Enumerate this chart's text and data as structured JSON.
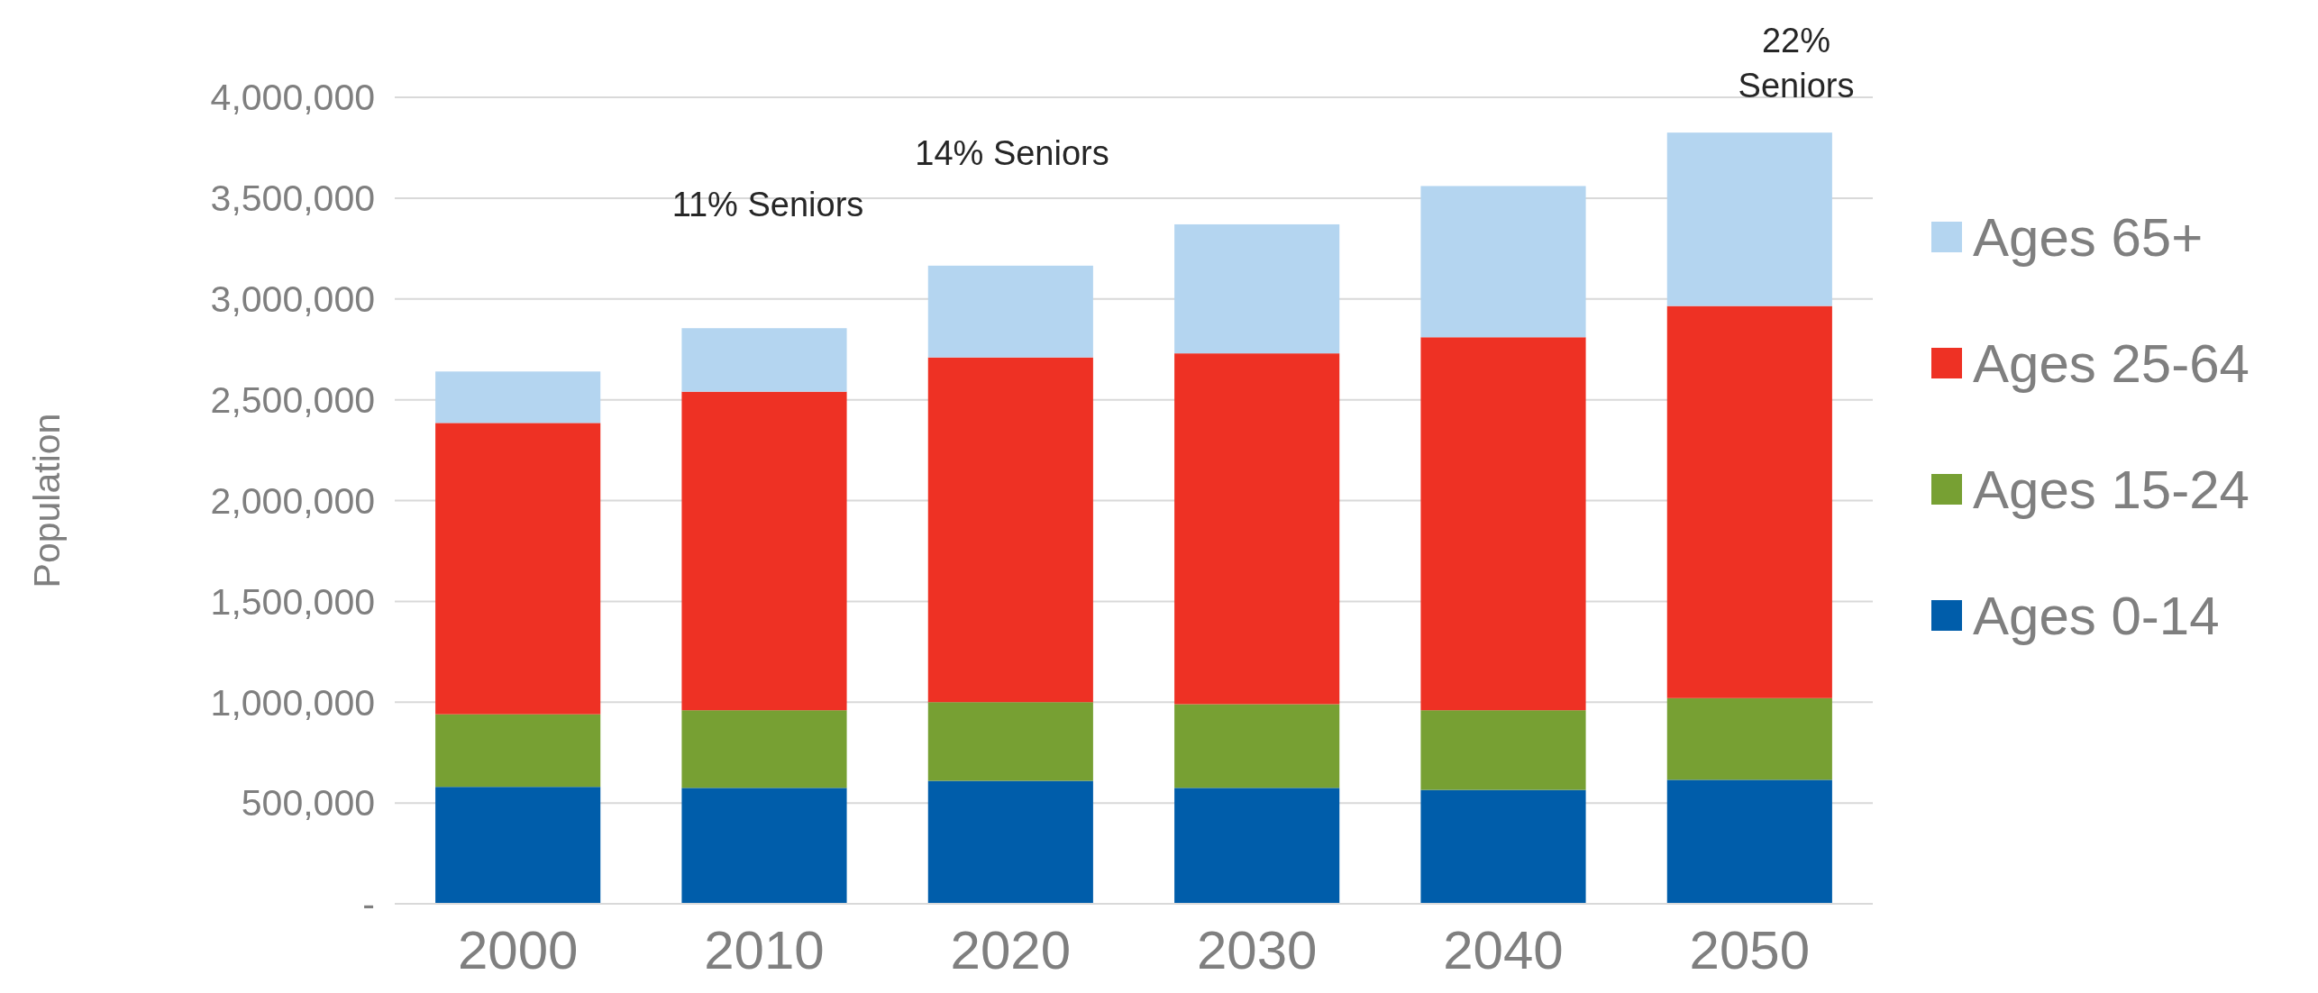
{
  "chart_data": {
    "type": "bar",
    "stacked": true,
    "ylabel": "Population",
    "categories": [
      "2000",
      "2010",
      "2020",
      "2030",
      "2040",
      "2050"
    ],
    "series": [
      {
        "name": "Ages 0-14",
        "color": "#005daa",
        "values": [
          580000,
          575000,
          610000,
          575000,
          565000,
          615000
        ]
      },
      {
        "name": "Ages 15-24",
        "color": "#77a033",
        "values": [
          360000,
          385000,
          390000,
          415000,
          395000,
          405000
        ]
      },
      {
        "name": "Ages 25-64",
        "color": "#ee3124",
        "values": [
          1445000,
          1580000,
          1710000,
          1740000,
          1850000,
          1945000
        ]
      },
      {
        "name": "Ages 65+",
        "color": "#b4d5f0",
        "values": [
          255000,
          315000,
          455000,
          640000,
          750000,
          860000
        ]
      }
    ],
    "ylim": [
      0,
      4000000
    ],
    "yticks": [
      {
        "value": 0,
        "label": "-"
      },
      {
        "value": 500000,
        "label": "500,000"
      },
      {
        "value": 1000000,
        "label": "1,000,000"
      },
      {
        "value": 1500000,
        "label": "1,500,000"
      },
      {
        "value": 2000000,
        "label": "2,000,000"
      },
      {
        "value": 2500000,
        "label": "2,500,000"
      },
      {
        "value": 3000000,
        "label": "3,000,000"
      },
      {
        "value": 3500000,
        "label": "3,500,000"
      },
      {
        "value": 4000000,
        "label": "4,000,000"
      }
    ],
    "grid": "y",
    "legend": "right",
    "annotations": [
      "11% Seniors",
      "14% Seniors",
      "22%\nSeniors"
    ]
  }
}
